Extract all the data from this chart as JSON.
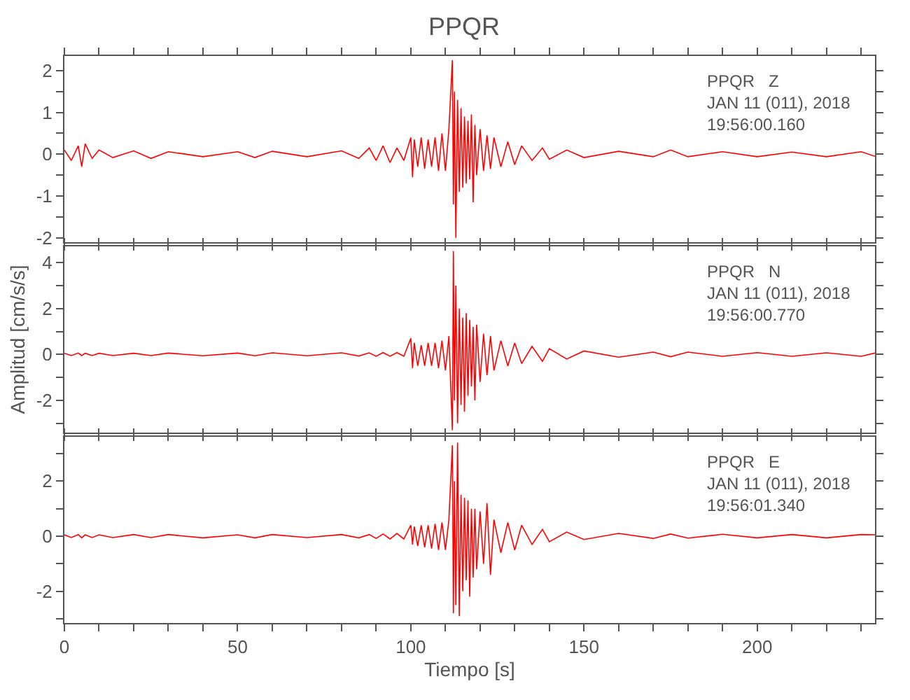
{
  "chart_data": [
    {
      "type": "line",
      "title": "PPQR",
      "annotations": [
        "PPQR   Z\nJAN 11 (011), 2018\n19:56:00.160"
      ],
      "tick_labels": "y",
      "grid": false,
      "line_style": "solid",
      "marker": "none",
      "x": [
        0,
        2,
        4,
        5,
        6,
        8,
        10,
        14,
        20,
        25,
        30,
        40,
        50,
        55,
        60,
        70,
        80,
        85,
        88,
        90,
        92,
        94,
        96,
        98,
        100,
        100.5,
        101,
        102,
        103,
        104,
        105,
        106,
        107,
        108,
        109,
        110,
        111,
        112,
        112.3,
        112.6,
        113,
        113.5,
        114,
        114.5,
        115,
        115.5,
        116,
        116.5,
        117,
        117.5,
        118,
        118.5,
        119,
        120,
        121,
        122,
        123,
        124,
        126,
        128,
        130,
        132,
        135,
        138,
        140,
        145,
        150,
        160,
        170,
        175,
        180,
        190,
        200,
        210,
        220,
        230,
        234
      ],
      "series": [
        {
          "color": "#ff0000",
          "values": [
            0.1,
            -0.15,
            0.2,
            -0.3,
            0.25,
            -0.1,
            0.1,
            -0.08,
            0.08,
            -0.1,
            0.06,
            -0.06,
            0.06,
            -0.08,
            0.07,
            -0.06,
            0.08,
            -0.1,
            0.15,
            -0.15,
            0.2,
            -0.2,
            0.15,
            -0.15,
            0.4,
            -0.55,
            0.35,
            -0.3,
            0.4,
            -0.35,
            0.35,
            -0.3,
            0.4,
            -0.4,
            0.5,
            -0.4,
            0.6,
            2.25,
            -1.2,
            1.5,
            -2.0,
            1.3,
            -0.9,
            1.1,
            -0.8,
            0.9,
            -0.7,
            0.8,
            -0.6,
            0.95,
            -1.15,
            0.7,
            -0.5,
            0.6,
            -0.4,
            0.45,
            -0.35,
            0.4,
            -0.3,
            0.3,
            -0.25,
            0.2,
            -0.15,
            0.15,
            -0.12,
            0.1,
            -0.08,
            0.07,
            -0.06,
            0.1,
            -0.06,
            0.06,
            -0.06,
            0.05,
            -0.06,
            0.06,
            -0.05
          ]
        }
      ],
      "xlim": [
        0,
        234
      ],
      "xticks": [
        0,
        {
          "value": 10,
          "label": null
        },
        {
          "value": 20,
          "label": null
        },
        {
          "value": 30,
          "label": null
        },
        {
          "value": 40,
          "label": null
        },
        50,
        {
          "value": 60,
          "label": null
        },
        {
          "value": 70,
          "label": null
        },
        {
          "value": 80,
          "label": null
        },
        {
          "value": 90,
          "label": null
        },
        100,
        {
          "value": 110,
          "label": null
        },
        {
          "value": 120,
          "label": null
        },
        {
          "value": 130,
          "label": null
        },
        {
          "value": 140,
          "label": null
        },
        150,
        {
          "value": 160,
          "label": null
        },
        {
          "value": 170,
          "label": null
        },
        {
          "value": 180,
          "label": null
        },
        {
          "value": 190,
          "label": null
        },
        200,
        {
          "value": 210,
          "label": null
        },
        {
          "value": 220,
          "label": null
        },
        {
          "value": 230,
          "label": null
        }
      ],
      "ylim": [
        -2.1,
        2.35
      ],
      "yticks": [
        -2,
        {
          "value": -1.5,
          "label": null
        },
        -1,
        {
          "value": -0.5,
          "label": null
        },
        0,
        {
          "value": 0.5,
          "label": null
        },
        1,
        {
          "value": 1.5,
          "label": null
        },
        2
      ]
    },
    {
      "type": "line",
      "ylabel": "Amplitud [cm/s/s]",
      "annotations": [
        "PPQR   N\nJAN 11 (011), 2018\n19:56:00.770"
      ],
      "tick_labels": "y",
      "grid": false,
      "line_style": "solid",
      "marker": "none",
      "x": [
        0,
        2,
        4,
        5,
        6,
        8,
        10,
        14,
        20,
        25,
        30,
        40,
        50,
        55,
        60,
        70,
        80,
        85,
        88,
        90,
        92,
        94,
        96,
        98,
        100,
        100.5,
        101,
        102,
        103,
        104,
        105,
        106,
        107,
        108,
        109,
        110,
        111,
        112,
        112.3,
        112.6,
        113,
        113.5,
        114,
        114.5,
        115,
        115.5,
        116,
        116.5,
        117,
        117.5,
        118,
        118.5,
        119,
        120,
        121,
        122,
        123,
        124,
        126,
        128,
        130,
        132,
        135,
        138,
        140,
        145,
        150,
        160,
        170,
        175,
        180,
        190,
        200,
        210,
        220,
        230,
        234
      ],
      "series": [
        {
          "color": "#ff0000",
          "values": [
            0.05,
            -0.05,
            0.06,
            -0.05,
            0.05,
            -0.05,
            0.05,
            -0.05,
            0.05,
            -0.05,
            0.06,
            -0.06,
            0.06,
            -0.06,
            0.07,
            -0.06,
            0.07,
            -0.07,
            0.07,
            -0.08,
            0.08,
            -0.08,
            0.08,
            -0.08,
            0.7,
            -0.6,
            0.5,
            -0.5,
            0.4,
            -0.5,
            0.5,
            -0.5,
            0.5,
            -0.6,
            0.6,
            -0.7,
            0.8,
            -3.3,
            4.5,
            -2.0,
            3.0,
            -3.0,
            2.0,
            -2.2,
            1.6,
            -2.5,
            1.8,
            -1.8,
            1.5,
            -1.4,
            1.2,
            -2.0,
            1.3,
            -1.2,
            0.9,
            -0.9,
            0.8,
            -0.7,
            0.6,
            -0.5,
            0.5,
            -0.4,
            0.35,
            -0.3,
            0.25,
            -0.2,
            0.15,
            -0.12,
            0.1,
            -0.1,
            0.1,
            -0.08,
            0.08,
            -0.08,
            0.07,
            -0.08,
            0.06
          ]
        }
      ],
      "xlim": [
        0,
        234
      ],
      "xticks": [
        0,
        {
          "value": 10,
          "label": null
        },
        {
          "value": 20,
          "label": null
        },
        {
          "value": 30,
          "label": null
        },
        {
          "value": 40,
          "label": null
        },
        50,
        {
          "value": 60,
          "label": null
        },
        {
          "value": 70,
          "label": null
        },
        {
          "value": 80,
          "label": null
        },
        {
          "value": 90,
          "label": null
        },
        100,
        {
          "value": 110,
          "label": null
        },
        {
          "value": 120,
          "label": null
        },
        {
          "value": 130,
          "label": null
        },
        {
          "value": 140,
          "label": null
        },
        150,
        {
          "value": 160,
          "label": null
        },
        {
          "value": 170,
          "label": null
        },
        {
          "value": 180,
          "label": null
        },
        {
          "value": 190,
          "label": null
        },
        200,
        {
          "value": 210,
          "label": null
        },
        {
          "value": 220,
          "label": null
        },
        {
          "value": 230,
          "label": null
        }
      ],
      "ylim": [
        -3.4,
        4.7
      ],
      "yticks": [
        {
          "value": -3,
          "label": null
        },
        -2,
        {
          "value": -1,
          "label": null
        },
        0,
        {
          "value": 1,
          "label": null
        },
        2,
        {
          "value": 3,
          "label": null
        },
        4
      ]
    },
    {
      "type": "line",
      "xlabel": "Tiempo [s]",
      "annotations": [
        "PPQR   E\nJAN 11 (011), 2018\n19:56:01.340"
      ],
      "grid": false,
      "line_style": "solid",
      "marker": "none",
      "x": [
        0,
        2,
        4,
        5,
        6,
        8,
        10,
        14,
        20,
        25,
        30,
        40,
        50,
        55,
        60,
        70,
        80,
        85,
        88,
        90,
        92,
        94,
        96,
        98,
        100,
        100.5,
        101,
        102,
        103,
        104,
        105,
        106,
        107,
        108,
        109,
        110,
        111,
        112,
        112.3,
        112.6,
        113,
        113.5,
        114,
        114.5,
        115,
        115.5,
        116,
        116.5,
        117,
        117.5,
        118,
        118.5,
        119,
        120,
        121,
        122,
        123,
        124,
        126,
        128,
        130,
        132,
        135,
        138,
        140,
        145,
        150,
        160,
        170,
        175,
        180,
        190,
        200,
        210,
        220,
        230,
        234
      ],
      "series": [
        {
          "color": "#ff0000",
          "values": [
            0.05,
            -0.05,
            0.06,
            -0.06,
            0.05,
            -0.05,
            0.05,
            -0.05,
            0.06,
            -0.05,
            0.06,
            -0.06,
            0.05,
            -0.06,
            0.06,
            -0.05,
            0.06,
            -0.06,
            0.06,
            -0.08,
            0.08,
            -0.1,
            0.1,
            -0.1,
            0.4,
            -0.3,
            0.35,
            -0.35,
            0.4,
            -0.4,
            0.4,
            -0.45,
            0.45,
            -0.5,
            0.5,
            -0.5,
            0.6,
            3.3,
            -2.8,
            2.0,
            -2.5,
            3.4,
            -2.9,
            1.5,
            -2.0,
            1.4,
            -1.6,
            1.3,
            -2.2,
            1.0,
            -1.5,
            1.0,
            -1.2,
            0.9,
            -1.0,
            1.2,
            -1.4,
            0.6,
            -0.6,
            0.5,
            -0.5,
            0.4,
            -0.3,
            0.25,
            -0.2,
            0.15,
            -0.12,
            0.1,
            -0.08,
            0.08,
            -0.07,
            0.07,
            -0.06,
            0.06,
            -0.06,
            0.06,
            0.05
          ]
        }
      ],
      "xlim": [
        0,
        234
      ],
      "xticks": [
        0,
        {
          "value": 10,
          "label": null
        },
        {
          "value": 20,
          "label": null
        },
        {
          "value": 30,
          "label": null
        },
        {
          "value": 40,
          "label": null
        },
        50,
        {
          "value": 60,
          "label": null
        },
        {
          "value": 70,
          "label": null
        },
        {
          "value": 80,
          "label": null
        },
        {
          "value": 90,
          "label": null
        },
        100,
        {
          "value": 110,
          "label": null
        },
        {
          "value": 120,
          "label": null
        },
        {
          "value": 130,
          "label": null
        },
        {
          "value": 140,
          "label": null
        },
        150,
        {
          "value": 160,
          "label": null
        },
        {
          "value": 170,
          "label": null
        },
        {
          "value": 180,
          "label": null
        },
        {
          "value": 190,
          "label": null
        },
        200,
        {
          "value": 210,
          "label": null
        },
        {
          "value": 220,
          "label": null
        },
        {
          "value": 230,
          "label": null
        }
      ],
      "ylim": [
        -3.15,
        3.6
      ],
      "yticks": [
        {
          "value": -3,
          "label": null
        },
        -2,
        {
          "value": -1,
          "label": null
        },
        0,
        {
          "value": 1,
          "label": null
        },
        2,
        {
          "value": 3,
          "label": null
        }
      ]
    }
  ]
}
